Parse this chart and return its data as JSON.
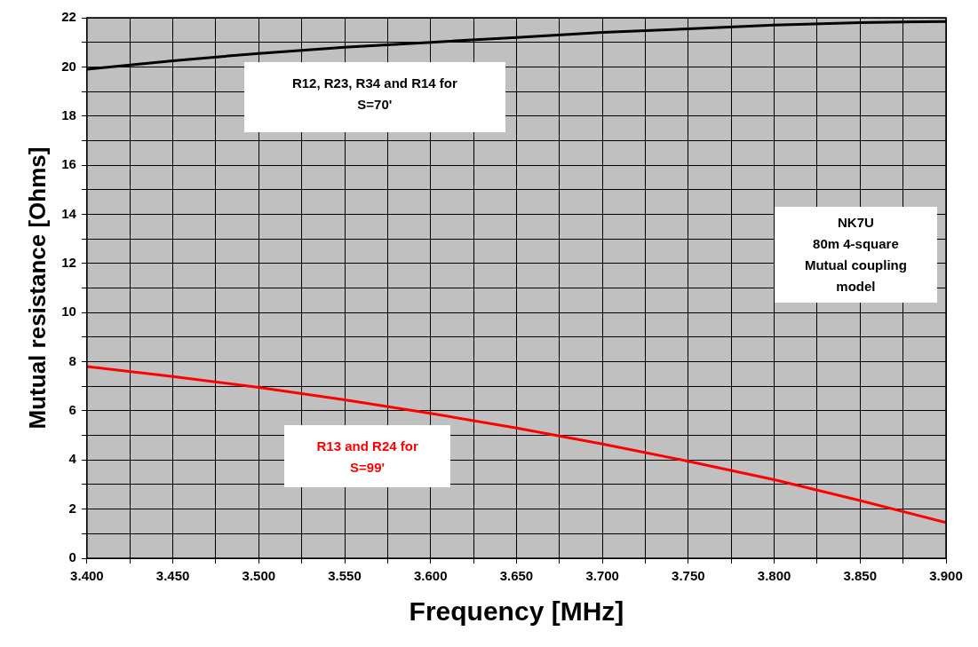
{
  "chart_data": {
    "type": "line",
    "xlabel": "Frequency [MHz]",
    "ylabel": "Mutual resistance [Ohms]",
    "x": [
      3.4,
      3.45,
      3.5,
      3.55,
      3.6,
      3.65,
      3.7,
      3.75,
      3.8,
      3.85,
      3.9
    ],
    "series": [
      {
        "name": "R12, R23, R34 and R14 for S=70'",
        "color": "#000000",
        "values": [
          19.9,
          20.25,
          20.55,
          20.8,
          21.0,
          21.2,
          21.4,
          21.55,
          21.7,
          21.8,
          21.85
        ]
      },
      {
        "name": "R13 and R24 for S=99'",
        "color": "#ff0000",
        "values": [
          7.8,
          7.4,
          6.95,
          6.45,
          5.9,
          5.3,
          4.65,
          3.95,
          3.2,
          2.35,
          1.45
        ]
      }
    ],
    "xlim": [
      3.4,
      3.9
    ],
    "xticks": [
      {
        "value": 3.4,
        "label": "3.400"
      },
      {
        "value": 3.425,
        "label": null
      },
      {
        "value": 3.45,
        "label": "3.450"
      },
      {
        "value": 3.475,
        "label": null
      },
      {
        "value": 3.5,
        "label": "3.500"
      },
      {
        "value": 3.525,
        "label": null
      },
      {
        "value": 3.55,
        "label": "3.550"
      },
      {
        "value": 3.575,
        "label": null
      },
      {
        "value": 3.6,
        "label": "3.600"
      },
      {
        "value": 3.625,
        "label": null
      },
      {
        "value": 3.65,
        "label": "3.650"
      },
      {
        "value": 3.675,
        "label": null
      },
      {
        "value": 3.7,
        "label": "3.700"
      },
      {
        "value": 3.725,
        "label": null
      },
      {
        "value": 3.75,
        "label": "3.750"
      },
      {
        "value": 3.775,
        "label": null
      },
      {
        "value": 3.8,
        "label": "3.800"
      },
      {
        "value": 3.825,
        "label": null
      },
      {
        "value": 3.85,
        "label": "3.850"
      },
      {
        "value": 3.875,
        "label": null
      },
      {
        "value": 3.9,
        "label": "3.900"
      }
    ],
    "ylim": [
      0,
      22
    ],
    "yticks": [
      0,
      {
        "value": 1,
        "label": null
      },
      2,
      {
        "value": 3,
        "label": null
      },
      4,
      {
        "value": 5,
        "label": null
      },
      6,
      {
        "value": 7,
        "label": null
      },
      8,
      {
        "value": 9,
        "label": null
      },
      10,
      {
        "value": 11,
        "label": null
      },
      12,
      {
        "value": 13,
        "label": null
      },
      14,
      {
        "value": 15,
        "label": null
      },
      16,
      {
        "value": 17,
        "label": null
      },
      18,
      {
        "value": 19,
        "label": null
      },
      20,
      {
        "value": 21,
        "label": null
      },
      22
    ],
    "grid": true,
    "marker": "none",
    "line_style": "solid",
    "legend": false,
    "annotations": [
      "NK7U",
      "80m 4-square",
      "Mutual coupling",
      "model"
    ]
  }
}
